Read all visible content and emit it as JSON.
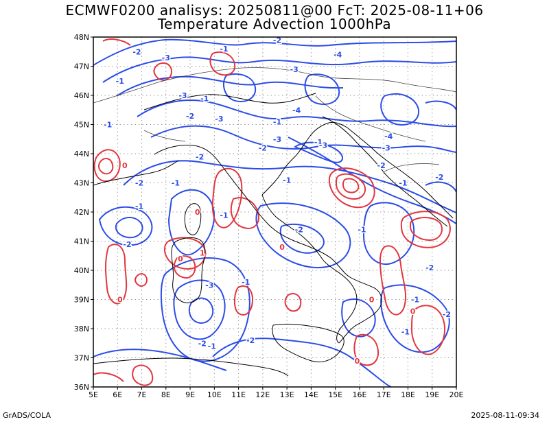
{
  "title_line1": "ECMWF0200 analisys: 20250811@00 FcT: 2025-08-11+06",
  "title_line2": "Temperature Advection 1000hPa",
  "footer_left": "GrADS/COLA",
  "footer_right": "2025-08-11-09:34",
  "map": {
    "lon_range": [
      5,
      20
    ],
    "lat_range": [
      36,
      48
    ],
    "lon_ticks": [
      "5E",
      "6E",
      "7E",
      "8E",
      "9E",
      "10E",
      "11E",
      "12E",
      "13E",
      "14E",
      "15E",
      "16E",
      "17E",
      "18E",
      "19E",
      "20E"
    ],
    "lat_ticks": [
      "36N",
      "37N",
      "38N",
      "39N",
      "40N",
      "41N",
      "42N",
      "43N",
      "44N",
      "45N",
      "46N",
      "47N",
      "48N"
    ],
    "grid": "dotted",
    "colors": {
      "negative": "#2b4ce8",
      "positive": "#e2363e",
      "coast": "#000000",
      "border": "#555555",
      "grid": "#9a9a9a"
    },
    "contour_labels": [
      {
        "text": "-2",
        "lon": 6.8,
        "lat": 47.5,
        "sign": "neg"
      },
      {
        "text": "-3",
        "lon": 8.0,
        "lat": 47.3,
        "sign": "neg"
      },
      {
        "text": "-1",
        "lon": 10.4,
        "lat": 47.6,
        "sign": "neg"
      },
      {
        "text": "-2",
        "lon": 12.6,
        "lat": 47.9,
        "sign": "neg"
      },
      {
        "text": "-3",
        "lon": 13.3,
        "lat": 46.9,
        "sign": "neg"
      },
      {
        "text": "-4",
        "lon": 15.1,
        "lat": 47.4,
        "sign": "neg"
      },
      {
        "text": "-1",
        "lon": 6.1,
        "lat": 46.5,
        "sign": "neg"
      },
      {
        "text": "-3",
        "lon": 8.7,
        "lat": 46.0,
        "sign": "neg"
      },
      {
        "text": "-1",
        "lon": 9.6,
        "lat": 45.9,
        "sign": "neg"
      },
      {
        "text": "-2",
        "lon": 9.0,
        "lat": 45.3,
        "sign": "neg"
      },
      {
        "text": "-3",
        "lon": 10.2,
        "lat": 45.2,
        "sign": "neg"
      },
      {
        "text": "-4",
        "lon": 13.4,
        "lat": 45.5,
        "sign": "neg"
      },
      {
        "text": "-1",
        "lon": 5.6,
        "lat": 45.0,
        "sign": "neg"
      },
      {
        "text": "-1",
        "lon": 12.6,
        "lat": 45.1,
        "sign": "neg"
      },
      {
        "text": "-3",
        "lon": 12.6,
        "lat": 44.5,
        "sign": "neg"
      },
      {
        "text": "-2",
        "lon": 12.0,
        "lat": 44.2,
        "sign": "neg"
      },
      {
        "text": "-1",
        "lon": 14.3,
        "lat": 44.4,
        "sign": "neg"
      },
      {
        "text": "-3",
        "lon": 14.5,
        "lat": 44.3,
        "sign": "neg"
      },
      {
        "text": "-4",
        "lon": 17.2,
        "lat": 44.6,
        "sign": "neg"
      },
      {
        "text": "-3",
        "lon": 17.1,
        "lat": 44.2,
        "sign": "neg"
      },
      {
        "text": "-2",
        "lon": 16.9,
        "lat": 43.6,
        "sign": "neg"
      },
      {
        "text": "-2",
        "lon": 9.4,
        "lat": 43.9,
        "sign": "neg"
      },
      {
        "text": "-2",
        "lon": 6.9,
        "lat": 43.0,
        "sign": "neg"
      },
      {
        "text": "-1",
        "lon": 8.4,
        "lat": 43.0,
        "sign": "neg"
      },
      {
        "text": "-1",
        "lon": 13.0,
        "lat": 43.1,
        "sign": "neg"
      },
      {
        "text": "-1",
        "lon": 17.8,
        "lat": 43.0,
        "sign": "neg"
      },
      {
        "text": "-2",
        "lon": 19.3,
        "lat": 43.2,
        "sign": "neg"
      },
      {
        "text": "-1",
        "lon": 6.9,
        "lat": 42.2,
        "sign": "neg"
      },
      {
        "text": "-1",
        "lon": 10.4,
        "lat": 41.9,
        "sign": "neg"
      },
      {
        "text": "-2",
        "lon": 13.5,
        "lat": 41.4,
        "sign": "neg"
      },
      {
        "text": "-1",
        "lon": 16.1,
        "lat": 41.4,
        "sign": "neg"
      },
      {
        "text": "-2",
        "lon": 6.4,
        "lat": 40.9,
        "sign": "neg"
      },
      {
        "text": "-2",
        "lon": 18.9,
        "lat": 40.1,
        "sign": "neg"
      },
      {
        "text": "-3",
        "lon": 9.8,
        "lat": 39.5,
        "sign": "neg"
      },
      {
        "text": "-1",
        "lon": 11.3,
        "lat": 39.6,
        "sign": "neg"
      },
      {
        "text": "-1",
        "lon": 18.3,
        "lat": 39.0,
        "sign": "neg"
      },
      {
        "text": "-1",
        "lon": 17.9,
        "lat": 37.9,
        "sign": "neg"
      },
      {
        "text": "-2",
        "lon": 9.5,
        "lat": 37.5,
        "sign": "neg"
      },
      {
        "text": "-1",
        "lon": 9.9,
        "lat": 37.4,
        "sign": "neg"
      },
      {
        "text": "-2",
        "lon": 11.5,
        "lat": 37.6,
        "sign": "neg"
      },
      {
        "text": "-2",
        "lon": 19.6,
        "lat": 38.5,
        "sign": "neg"
      },
      {
        "text": "0",
        "lon": 6.3,
        "lat": 43.6,
        "sign": "pos"
      },
      {
        "text": "0",
        "lon": 9.3,
        "lat": 42.0,
        "sign": "pos"
      },
      {
        "text": "0",
        "lon": 12.8,
        "lat": 40.8,
        "sign": "pos"
      },
      {
        "text": "0",
        "lon": 8.6,
        "lat": 40.4,
        "sign": "pos"
      },
      {
        "text": "0",
        "lon": 6.1,
        "lat": 39.0,
        "sign": "pos"
      },
      {
        "text": "0",
        "lon": 16.5,
        "lat": 39.0,
        "sign": "pos"
      },
      {
        "text": "0",
        "lon": 18.2,
        "lat": 38.6,
        "sign": "pos"
      },
      {
        "text": "1",
        "lon": 9.5,
        "lat": 40.6,
        "sign": "pos"
      },
      {
        "text": "0",
        "lon": 15.9,
        "lat": 36.9,
        "sign": "pos"
      }
    ]
  }
}
